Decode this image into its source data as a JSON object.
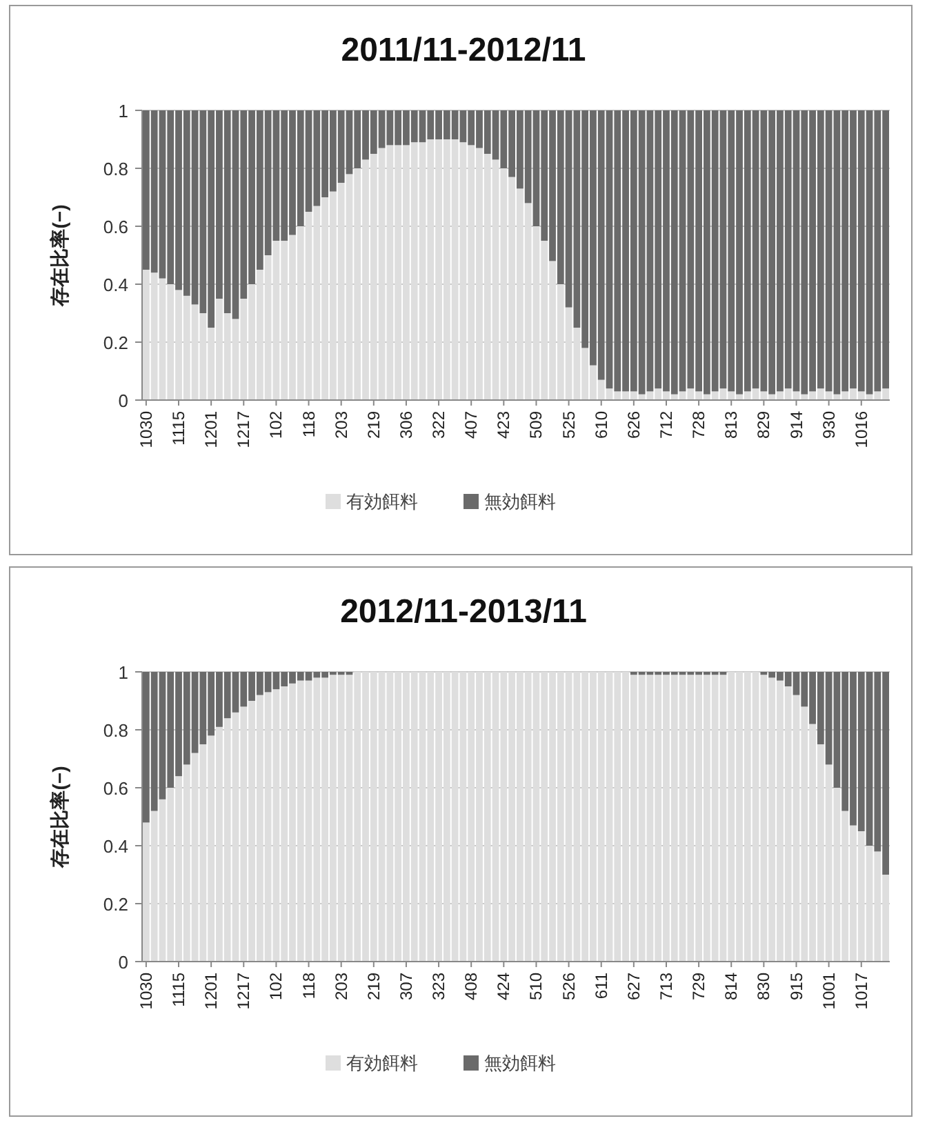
{
  "chart_data": [
    {
      "type": "bar",
      "stacked": true,
      "title": "2011/11-2012/11",
      "ylabel": "存在比率(−)",
      "ylim": [
        0,
        1
      ],
      "yticks": [
        0,
        0.2,
        0.4,
        0.6,
        0.8,
        1
      ],
      "grid": "y",
      "legend": "bottom",
      "categories": [
        "1030",
        null,
        null,
        null,
        "1115",
        null,
        null,
        null,
        "1201",
        null,
        null,
        null,
        "1217",
        null,
        null,
        null,
        "102",
        null,
        null,
        null,
        "118",
        null,
        null,
        null,
        "203",
        null,
        null,
        null,
        "219",
        null,
        null,
        null,
        "306",
        null,
        null,
        null,
        "322",
        null,
        null,
        null,
        "407",
        null,
        null,
        null,
        "423",
        null,
        null,
        null,
        "509",
        null,
        null,
        null,
        "525",
        null,
        null,
        null,
        "610",
        null,
        null,
        null,
        "626",
        null,
        null,
        null,
        "712",
        null,
        null,
        null,
        "728",
        null,
        null,
        null,
        "813",
        null,
        null,
        null,
        "829",
        null,
        null,
        null,
        "914",
        null,
        null,
        null,
        "930",
        null,
        null,
        null,
        "1016",
        null,
        null,
        null
      ],
      "series": [
        {
          "name": "有効餌料",
          "color": "#dedede",
          "values": [
            0.45,
            0.44,
            0.42,
            0.4,
            0.38,
            0.36,
            0.33,
            0.3,
            0.25,
            0.35,
            0.3,
            0.28,
            0.35,
            0.4,
            0.45,
            0.5,
            0.55,
            0.55,
            0.57,
            0.6,
            0.65,
            0.67,
            0.7,
            0.72,
            0.75,
            0.78,
            0.8,
            0.83,
            0.85,
            0.87,
            0.88,
            0.88,
            0.88,
            0.89,
            0.89,
            0.9,
            0.9,
            0.9,
            0.9,
            0.89,
            0.88,
            0.87,
            0.85,
            0.83,
            0.8,
            0.77,
            0.73,
            0.68,
            0.6,
            0.55,
            0.48,
            0.4,
            0.32,
            0.25,
            0.18,
            0.12,
            0.07,
            0.04,
            0.03,
            0.03,
            0.03,
            0.02,
            0.03,
            0.04,
            0.03,
            0.02,
            0.03,
            0.04,
            0.03,
            0.02,
            0.03,
            0.04,
            0.03,
            0.02,
            0.03,
            0.04,
            0.03,
            0.02,
            0.03,
            0.04,
            0.03,
            0.02,
            0.03,
            0.04,
            0.03,
            0.02,
            0.03,
            0.04,
            0.03,
            0.02,
            0.03,
            0.04
          ]
        },
        {
          "name": "無効餌料",
          "color": "#6a6a6a",
          "values": [
            0.55,
            0.56,
            0.58,
            0.6,
            0.62,
            0.64,
            0.67,
            0.7,
            0.75,
            0.65,
            0.7,
            0.72,
            0.65,
            0.6,
            0.55,
            0.5,
            0.45,
            0.45,
            0.43,
            0.4,
            0.35,
            0.33,
            0.3,
            0.28,
            0.25,
            0.22,
            0.2,
            0.17,
            0.15,
            0.13,
            0.12,
            0.12,
            0.12,
            0.11,
            0.11,
            0.1,
            0.1,
            0.1,
            0.1,
            0.11,
            0.12,
            0.13,
            0.15,
            0.17,
            0.2,
            0.23,
            0.27,
            0.32,
            0.4,
            0.45,
            0.52,
            0.6,
            0.68,
            0.75,
            0.82,
            0.88,
            0.93,
            0.96,
            0.97,
            0.97,
            0.97,
            0.98,
            0.97,
            0.96,
            0.97,
            0.98,
            0.97,
            0.96,
            0.97,
            0.98,
            0.97,
            0.96,
            0.97,
            0.98,
            0.97,
            0.96,
            0.97,
            0.98,
            0.97,
            0.96,
            0.97,
            0.98,
            0.97,
            0.96,
            0.97,
            0.98,
            0.97,
            0.96,
            0.97,
            0.98,
            0.97,
            0.96
          ]
        }
      ]
    },
    {
      "type": "bar",
      "stacked": true,
      "title": "2012/11-2013/11",
      "ylabel": "存在比率(−)",
      "ylim": [
        0,
        1
      ],
      "yticks": [
        0,
        0.2,
        0.4,
        0.6,
        0.8,
        1
      ],
      "grid": "y",
      "legend": "bottom",
      "categories": [
        "1030",
        null,
        null,
        null,
        "1115",
        null,
        null,
        null,
        "1201",
        null,
        null,
        null,
        "1217",
        null,
        null,
        null,
        "102",
        null,
        null,
        null,
        "118",
        null,
        null,
        null,
        "203",
        null,
        null,
        null,
        "219",
        null,
        null,
        null,
        "307",
        null,
        null,
        null,
        "323",
        null,
        null,
        null,
        "408",
        null,
        null,
        null,
        "424",
        null,
        null,
        null,
        "510",
        null,
        null,
        null,
        "526",
        null,
        null,
        null,
        "611",
        null,
        null,
        null,
        "627",
        null,
        null,
        null,
        "713",
        null,
        null,
        null,
        "729",
        null,
        null,
        null,
        "814",
        null,
        null,
        null,
        "830",
        null,
        null,
        null,
        "915",
        null,
        null,
        null,
        "1001",
        null,
        null,
        null,
        "1017",
        null,
        null,
        null
      ],
      "series": [
        {
          "name": "有効餌料",
          "color": "#dedede",
          "values": [
            0.48,
            0.52,
            0.56,
            0.6,
            0.64,
            0.68,
            0.72,
            0.75,
            0.78,
            0.81,
            0.84,
            0.86,
            0.88,
            0.9,
            0.92,
            0.93,
            0.94,
            0.95,
            0.96,
            0.97,
            0.97,
            0.98,
            0.98,
            0.99,
            0.99,
            0.99,
            1,
            1,
            1,
            1,
            1,
            1,
            1,
            1,
            1,
            1,
            1,
            1,
            1,
            1,
            1,
            1,
            1,
            1,
            1,
            1,
            1,
            1,
            1,
            1,
            1,
            1,
            1,
            1,
            1,
            1,
            1,
            1,
            1,
            1,
            0.99,
            0.99,
            0.99,
            0.99,
            0.99,
            0.99,
            0.99,
            0.99,
            0.99,
            0.99,
            0.99,
            0.99,
            1,
            1,
            1,
            1,
            0.99,
            0.98,
            0.97,
            0.95,
            0.92,
            0.88,
            0.82,
            0.75,
            0.68,
            0.6,
            0.52,
            0.47,
            0.45,
            0.4,
            0.38,
            0.3
          ]
        },
        {
          "name": "無効餌料",
          "color": "#6a6a6a",
          "values": [
            0.52,
            0.48,
            0.44,
            0.4,
            0.36,
            0.32,
            0.28,
            0.25,
            0.22,
            0.19,
            0.16,
            0.14,
            0.12,
            0.1,
            0.08,
            0.07,
            0.06,
            0.05,
            0.04,
            0.03,
            0.03,
            0.02,
            0.02,
            0.01,
            0.01,
            0.01,
            0,
            0,
            0,
            0,
            0,
            0,
            0,
            0,
            0,
            0,
            0,
            0,
            0,
            0,
            0,
            0,
            0,
            0,
            0,
            0,
            0,
            0,
            0,
            0,
            0,
            0,
            0,
            0,
            0,
            0,
            0,
            0,
            0,
            0,
            0.01,
            0.01,
            0.01,
            0.01,
            0.01,
            0.01,
            0.01,
            0.01,
            0.01,
            0.01,
            0.01,
            0.01,
            0,
            0,
            0,
            0,
            0.01,
            0.02,
            0.03,
            0.05,
            0.08,
            0.12,
            0.18,
            0.25,
            0.32,
            0.4,
            0.48,
            0.53,
            0.55,
            0.6,
            0.62,
            0.7
          ]
        }
      ]
    }
  ]
}
